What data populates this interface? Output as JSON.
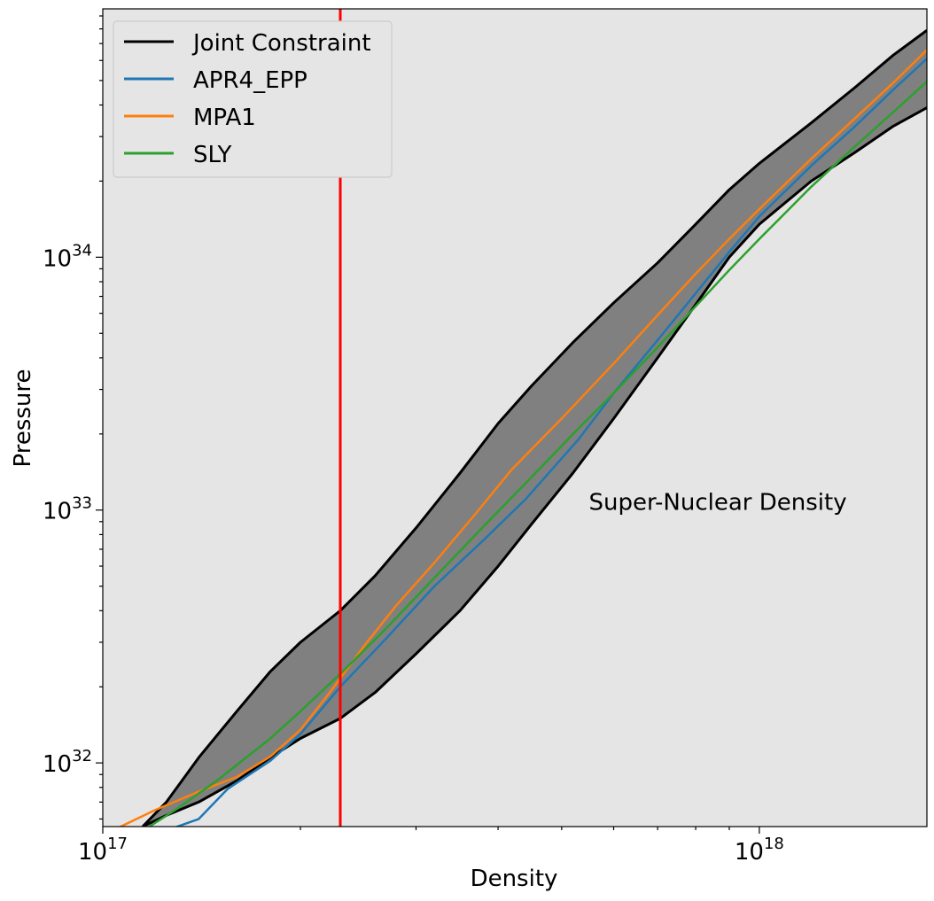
{
  "chart_data": {
    "type": "line",
    "xlabel": "Density",
    "ylabel": "Pressure",
    "xscale": "log",
    "yscale": "log",
    "xlim": [
      1e+17,
      1.8e+18
    ],
    "ylim": [
      5.6e+31,
      9.6e+34
    ],
    "x_tick_labels": [
      {
        "value": 1e+17,
        "base": "10",
        "exp": "17"
      },
      {
        "value": 1e+18,
        "base": "10",
        "exp": "18"
      }
    ],
    "y_tick_labels": [
      {
        "value": 1e+32,
        "base": "10",
        "exp": "32"
      },
      {
        "value": 1e+33,
        "base": "10",
        "exp": "33"
      },
      {
        "value": 1e+34,
        "base": "10",
        "exp": "34"
      }
    ],
    "grid": false,
    "legend_position": "upper-left",
    "colors": {
      "plot_background": "#e5e5e5",
      "band_fill": "#808080",
      "band_edge": "#000000",
      "vline": "#ff0000"
    },
    "vertical_line": {
      "x": 2.3e+17,
      "color": "#ff0000"
    },
    "annotation": {
      "text": "Super-Nuclear Density",
      "x": 5.5e+17,
      "y": 1e+33
    },
    "band": {
      "name": "Joint Constraint",
      "color": "#000000",
      "upper": [
        [
          1.15e+17,
          5.6e+31
        ],
        [
          1.25e+17,
          7e+31
        ],
        [
          1.4e+17,
          1.05e+32
        ],
        [
          1.6e+17,
          1.6e+32
        ],
        [
          1.8e+17,
          2.3e+32
        ],
        [
          2e+17,
          3e+32
        ],
        [
          2.3e+17,
          4e+32
        ],
        [
          2.6e+17,
          5.5e+32
        ],
        [
          3e+17,
          8.5e+32
        ],
        [
          3.5e+17,
          1.4e+33
        ],
        [
          4e+17,
          2.2e+33
        ],
        [
          4.5e+17,
          3.1e+33
        ],
        [
          5.2e+17,
          4.6e+33
        ],
        [
          6e+17,
          6.6e+33
        ],
        [
          7e+17,
          9.5e+33
        ],
        [
          8e+17,
          1.35e+34
        ],
        [
          9e+17,
          1.85e+34
        ],
        [
          1e+18,
          2.35e+34
        ],
        [
          1.2e+18,
          3.4e+34
        ],
        [
          1.4e+18,
          4.7e+34
        ],
        [
          1.6e+18,
          6.3e+34
        ],
        [
          1.8e+18,
          7.9e+34
        ]
      ],
      "lower": [
        [
          1.15e+17,
          5.6e+31
        ],
        [
          1.25e+17,
          6.2e+31
        ],
        [
          1.4e+17,
          7e+31
        ],
        [
          1.6e+17,
          8.5e+31
        ],
        [
          1.8e+17,
          1.05e+32
        ],
        [
          2e+17,
          1.25e+32
        ],
        [
          2.3e+17,
          1.5e+32
        ],
        [
          2.6e+17,
          1.9e+32
        ],
        [
          3e+17,
          2.7e+32
        ],
        [
          3.5e+17,
          4e+32
        ],
        [
          4e+17,
          6e+32
        ],
        [
          4.5e+17,
          8.8e+32
        ],
        [
          5.2e+17,
          1.4e+33
        ],
        [
          6e+17,
          2.3e+33
        ],
        [
          7e+17,
          4e+33
        ],
        [
          8e+17,
          6.5e+33
        ],
        [
          9e+17,
          1e+34
        ],
        [
          1e+18,
          1.35e+34
        ],
        [
          1.2e+18,
          2e+34
        ],
        [
          1.4e+18,
          2.6e+34
        ],
        [
          1.6e+18,
          3.3e+34
        ],
        [
          1.8e+18,
          3.9e+34
        ]
      ]
    },
    "series": [
      {
        "name": "APR4_EPP",
        "color": "#1f77b4",
        "points": [
          [
            1.15e+17,
            5e+31
          ],
          [
            1.4e+17,
            6e+31
          ],
          [
            1.55e+17,
            7.9e+31
          ],
          [
            1.8e+17,
            1.02e+32
          ],
          [
            2e+17,
            1.3e+32
          ],
          [
            2.3e+17,
            2e+32
          ],
          [
            2.7e+17,
            3.1e+32
          ],
          [
            3.2e+17,
            5e+32
          ],
          [
            3.8e+17,
            7.6e+32
          ],
          [
            4.4e+17,
            1.1e+33
          ],
          [
            5.3e+17,
            1.9e+33
          ],
          [
            6e+17,
            2.9e+33
          ],
          [
            7e+17,
            4.7e+33
          ],
          [
            8e+17,
            7.2e+33
          ],
          [
            9e+17,
            1.05e+34
          ],
          [
            1e+18,
            1.45e+34
          ],
          [
            1.2e+18,
            2.3e+34
          ],
          [
            1.4e+18,
            3.3e+34
          ],
          [
            1.6e+18,
            4.6e+34
          ],
          [
            1.8e+18,
            6.1e+34
          ]
        ]
      },
      {
        "name": "MPA1",
        "color": "#ff7f0e",
        "points": [
          [
            1.05e+17,
            5.5e+31
          ],
          [
            1.2e+17,
            6.5e+31
          ],
          [
            1.4e+17,
            7.7e+31
          ],
          [
            1.6e+17,
            8.8e+31
          ],
          [
            1.8e+17,
            1.06e+32
          ],
          [
            2e+17,
            1.35e+32
          ],
          [
            2.2e+17,
            1.85e+32
          ],
          [
            2.5e+17,
            2.9e+32
          ],
          [
            2.8e+17,
            4.2e+32
          ],
          [
            3.2e+17,
            6.2e+32
          ],
          [
            3.7e+17,
            9.7e+32
          ],
          [
            4.2e+17,
            1.45e+33
          ],
          [
            5e+17,
            2.3e+33
          ],
          [
            6e+17,
            3.8e+33
          ],
          [
            7e+17,
            5.9e+33
          ],
          [
            8e+17,
            8.6e+33
          ],
          [
            9e+17,
            1.18e+34
          ],
          [
            1e+18,
            1.55e+34
          ],
          [
            1.2e+18,
            2.45e+34
          ],
          [
            1.4e+18,
            3.55e+34
          ],
          [
            1.6e+18,
            4.9e+34
          ],
          [
            1.8e+18,
            6.6e+34
          ]
        ]
      },
      {
        "name": "SLY",
        "color": "#2ca02c",
        "points": [
          [
            1.1e+17,
            5e+31
          ],
          [
            1.3e+17,
            6.6e+31
          ],
          [
            1.5e+17,
            8.6e+31
          ],
          [
            1.8e+17,
            1.25e+32
          ],
          [
            2e+17,
            1.6e+32
          ],
          [
            2.3e+17,
            2.25e+32
          ],
          [
            2.7e+17,
            3.4e+32
          ],
          [
            3.2e+17,
            5.4e+32
          ],
          [
            3.8e+17,
            8.6e+32
          ],
          [
            4.5e+17,
            1.35e+33
          ],
          [
            5.3e+17,
            2.1e+33
          ],
          [
            6e+17,
            2.9e+33
          ],
          [
            7e+17,
            4.4e+33
          ],
          [
            8e+17,
            6.4e+33
          ],
          [
            9e+17,
            8.9e+33
          ],
          [
            1e+18,
            1.18e+34
          ],
          [
            1.2e+18,
            1.9e+34
          ],
          [
            1.4e+18,
            2.75e+34
          ],
          [
            1.6e+18,
            3.75e+34
          ],
          [
            1.8e+18,
            4.95e+34
          ]
        ]
      }
    ]
  }
}
